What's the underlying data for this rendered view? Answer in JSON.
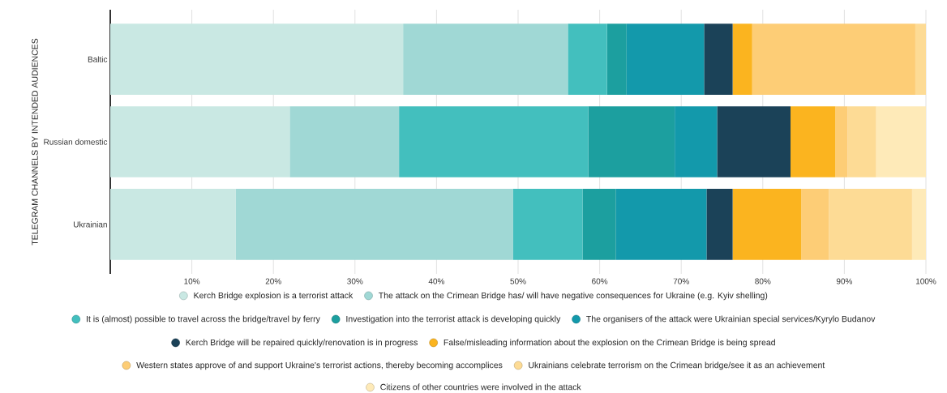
{
  "chart_data": {
    "type": "bar",
    "orientation": "horizontal",
    "stacked": true,
    "ylabel": "TELEGRAM CHANNELS BY INTENDED AUDIENCES",
    "categories": [
      "Baltic",
      "Russian domestic",
      "Ukrainian"
    ],
    "series": [
      {
        "name": "Kerch Bridge explosion is a terrorist attack",
        "color": "#c9e8e3",
        "values": [
          35.9,
          22.0,
          15.4
        ]
      },
      {
        "name": "The attack on the Crimean Bridge has/ will have negative consequences for Ukraine (e.g. Kyiv shelling)",
        "color": "#a0d8d5",
        "values": [
          20.2,
          13.4,
          34.0
        ]
      },
      {
        "name": "It is (almost) possible to travel across the bridge/travel by ferry",
        "color": "#43bfbe",
        "values": [
          4.8,
          23.2,
          8.5
        ]
      },
      {
        "name": "Investigation into the terrorist attack is developing quickly",
        "color": "#1c9f9f",
        "values": [
          2.4,
          10.6,
          4.1
        ]
      },
      {
        "name": "The organisers of the attack were Ukrainian special services/Kyrylo Budanov",
        "color": "#1399ab",
        "values": [
          9.5,
          5.2,
          11.1
        ]
      },
      {
        "name": "Kerch Bridge will be repaired quickly/renovation is in progress",
        "color": "#1b4258",
        "values": [
          3.5,
          9.0,
          3.2
        ]
      },
      {
        "name": "False/misleading information about the explosion on the Crimean Bridge is being spread",
        "color": "#fbb41f",
        "values": [
          2.4,
          5.5,
          8.4
        ]
      },
      {
        "name": "Western states approve of and support Ukraine's terrorist actions, thereby becoming accomplices",
        "color": "#fdcd76",
        "values": [
          20.0,
          1.5,
          3.4
        ]
      },
      {
        "name": "Ukrainians celebrate terrorism on the Crimean bridge/see it as an achievement",
        "color": "#fddb95",
        "values": [
          1.3,
          3.5,
          10.2
        ]
      },
      {
        "name": "Citizens of other countries were involved in the attack",
        "color": "#feeab8",
        "values": [
          0,
          6.1,
          1.7
        ]
      }
    ],
    "xlim": [
      0,
      100
    ],
    "xticks": [
      {
        "value": 10,
        "label": "10%"
      },
      {
        "value": 20,
        "label": "20%"
      },
      {
        "value": 30,
        "label": "30%"
      },
      {
        "value": 40,
        "label": "40%"
      },
      {
        "value": 50,
        "label": "50%"
      },
      {
        "value": 60,
        "label": "60%"
      },
      {
        "value": 70,
        "label": "70%"
      },
      {
        "value": 80,
        "label": "80%"
      },
      {
        "value": 90,
        "label": "90%"
      },
      {
        "value": 100,
        "label": "100%"
      }
    ],
    "grid": "x",
    "legend": "bottom"
  }
}
